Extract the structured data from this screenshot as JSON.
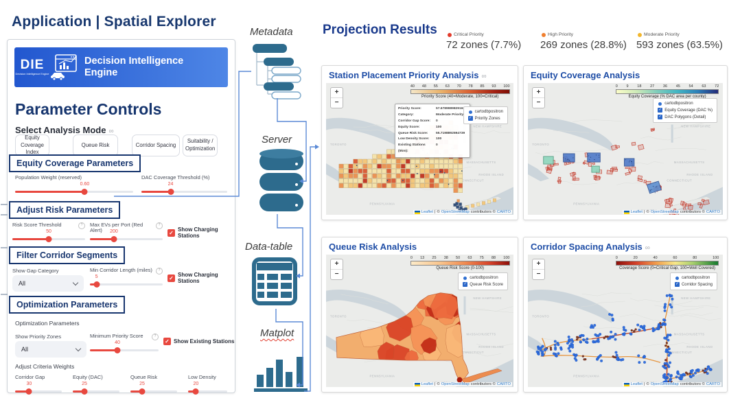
{
  "header": {
    "app": "Application",
    "sep": "|",
    "title": "Spatial Explorer"
  },
  "left_panel": {
    "logo_abbr": "DIE",
    "logo_caption": "Decision Intelligence Engine",
    "banner_title_l1": "Decision Intelligence",
    "banner_title_l2": "Engine",
    "heading": "Parameter Controls",
    "mode_label": "Select Analysis Mode",
    "link_icon": "∞",
    "mode_buttons": [
      {
        "label_l1": "Equity Coverage",
        "label_l2": "Index"
      },
      {
        "label_l1": "Queue Risk",
        "label_l2": ""
      },
      {
        "label_l1": "Corridor Spacing",
        "label_l2": ""
      },
      {
        "label_l1": "Suitability /",
        "label_l2": "Optimization"
      }
    ],
    "sections": {
      "equity": {
        "title": "Equity Coverage Parameters",
        "sliders": [
          {
            "label": "Population Weight (reserved)",
            "value": "0.60",
            "pct": 59,
            "help": false
          },
          {
            "label": "DAC Coverage Threshold (%)",
            "value": "24",
            "pct": 34,
            "help": false
          }
        ]
      },
      "risk": {
        "title": "Adjust Risk Parameters",
        "sliders": [
          {
            "label": "Risk Score Threshold",
            "value": "50",
            "pct": 50,
            "help": true
          },
          {
            "label": "Max EVs per Port (Red Alert)",
            "value": "200",
            "pct": 33,
            "help": true
          }
        ],
        "checkbox": "Show Charging Stations"
      },
      "corridor": {
        "title": "Filter Corridor Segments",
        "dropdown_label": "Show Gap Category",
        "dropdown_value": "All",
        "sliders": [
          {
            "label": "Min Corridor Length (miles)",
            "value": "5",
            "pct": 9,
            "help": true
          }
        ],
        "checkbox": "Show Charging Stations"
      },
      "optimization": {
        "title": "Optimization Parameters",
        "inner_label": "Optimization Parameters",
        "dropdown_label": "Show Priority Zones",
        "dropdown_value": "All",
        "sliders": [
          {
            "label": "Minimum Priority Score",
            "value": "40",
            "pct": 40,
            "help": true
          }
        ],
        "checkbox": "Show Existing Stations",
        "weights_label": "Adjust Criteria Weights",
        "weights": [
          {
            "label": "Corridor Gap",
            "value": "30",
            "pct": 30,
            "help": false
          },
          {
            "label": "Equity (DAC)",
            "value": "25",
            "pct": 25,
            "help": false
          },
          {
            "label": "Queue Risk",
            "value": "25",
            "pct": 25,
            "help": false
          },
          {
            "label": "Low Density",
            "value": "20",
            "pct": 20,
            "help": false
          }
        ]
      }
    }
  },
  "pipeline": {
    "metadata": "Metadata",
    "server": "Server",
    "datatable": "Data-table",
    "matplot": "Matplot"
  },
  "results": {
    "heading": "Projection Results",
    "stats": [
      {
        "label": "Critical Priority",
        "value": "72 zones (7.7%)",
        "color": "#e23a2b"
      },
      {
        "label": "High Priority",
        "value": "269 zones (28.8%)",
        "color": "#f07f2e"
      },
      {
        "label": "Moderate Priority",
        "value": "593 zones (63.5%)",
        "color": "#f2b62c"
      }
    ]
  },
  "panels": [
    {
      "title": "Station Placement Priority Analysis",
      "link_icon": "∞",
      "kind": "priority",
      "colorbar": {
        "ticks": [
          "40",
          "48",
          "55",
          "63",
          "70",
          "78",
          "85",
          "93",
          "100"
        ],
        "caption": "Priority Score (40=Moderate, 100=Critical)",
        "gradient": "priority"
      },
      "legend": [
        {
          "type": "radio",
          "label": "cartodbpositron"
        },
        {
          "type": "check",
          "label": "Priority Zones"
        }
      ],
      "tooltip": [
        {
          "label": "Priority Score:",
          "value": "57.67899898291605"
        },
        {
          "label": "Category:",
          "value": "Moderate Priority"
        },
        {
          "label": "Corridor Gap Score:",
          "value": "0"
        },
        {
          "label": "Equity Score:",
          "value": "100"
        },
        {
          "label": "Queue Risk Score:",
          "value": "55.7198892594739"
        },
        {
          "label": "Low Density Score:",
          "value": "100"
        },
        {
          "label": "Existing Stations (5km):",
          "value": "0"
        }
      ]
    },
    {
      "title": "Equity Coverage Analysis",
      "link_icon": "",
      "kind": "equity",
      "colorbar": {
        "ticks": [
          "0",
          "9",
          "18",
          "27",
          "36",
          "45",
          "54",
          "63",
          "72"
        ],
        "caption": "Equity Coverage (% DAC area per county)",
        "gradient": "equity"
      },
      "legend": [
        {
          "type": "radio",
          "label": "cartodbpositron"
        },
        {
          "type": "check",
          "label": "Equity Coverage (DAC %)"
        },
        {
          "type": "check",
          "label": "DAC Polygons (Detail)"
        }
      ]
    },
    {
      "title": "Queue Risk Analysis",
      "link_icon": "",
      "kind": "queue",
      "colorbar": {
        "ticks": [
          "0",
          "13",
          "25",
          "38",
          "50",
          "63",
          "75",
          "88",
          "100"
        ],
        "caption": "Queue Risk Score (0-100)",
        "gradient": "queue"
      },
      "legend": [
        {
          "type": "radio",
          "label": "cartodbpositron"
        },
        {
          "type": "check",
          "label": "Queue Risk Score"
        }
      ]
    },
    {
      "title": "Corridor Spacing Analysis",
      "link_icon": "∞",
      "kind": "corridor",
      "colorbar": {
        "ticks": [
          "0",
          "20",
          "40",
          "60",
          "80",
          "100"
        ],
        "caption": "Coverage Score (0=Critical Gap, 100=Well Covered)",
        "gradient": "corridor"
      },
      "legend": [
        {
          "type": "radio",
          "label": "cartodbpositron"
        },
        {
          "type": "check",
          "label": "Corridor Spacing"
        }
      ]
    }
  ],
  "map": {
    "zoom_in": "+",
    "zoom_out": "−",
    "attribution": {
      "leaflet": "Leaflet",
      "sep": "|",
      "c1": "©",
      "osm": "OpenStreetMap",
      "mid": "contributors ©",
      "carto": "CARTO"
    },
    "base_labels": [
      "TORONTO",
      "PENNSYLVANIA",
      "NEW YORK",
      "NEW HAMPSHIRE",
      "MASSACHUSETTS",
      "CONNECTICUT",
      "RHODE ISLAND"
    ]
  }
}
